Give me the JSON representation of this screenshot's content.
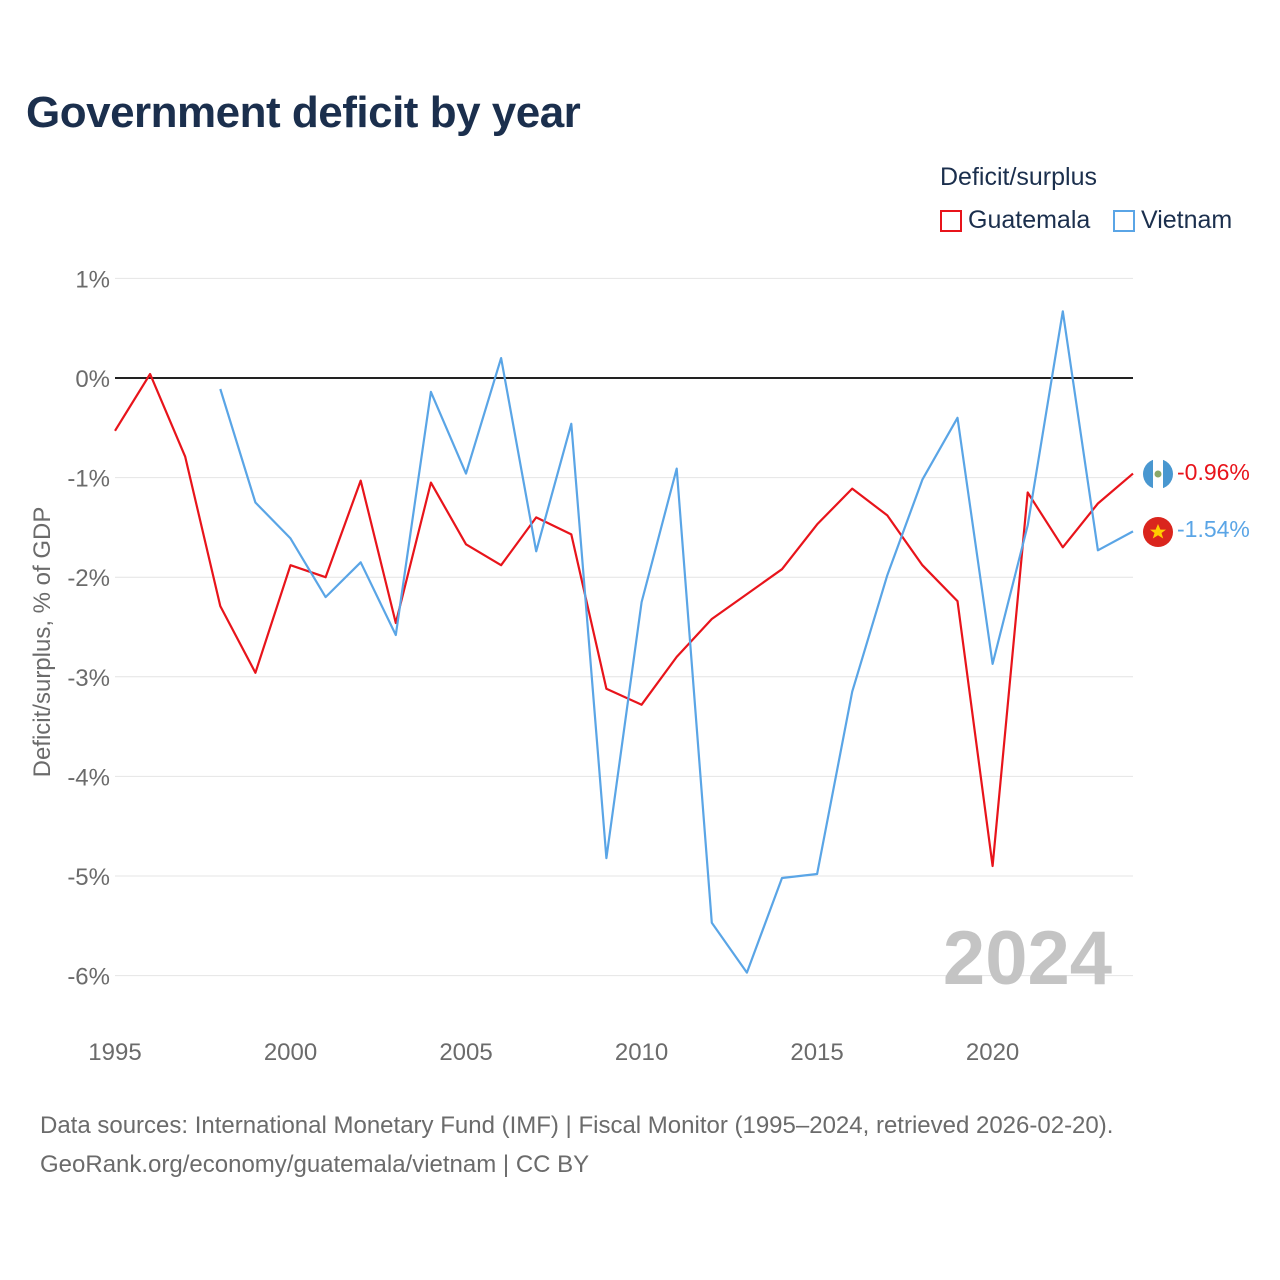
{
  "title": "Government deficit by year",
  "legend": {
    "title": "Deficit/surplus",
    "items": [
      {
        "label": "Guatemala",
        "color": "#e8141b"
      },
      {
        "label": "Vietnam",
        "color": "#5aa5e6"
      }
    ]
  },
  "footer": {
    "line1": "Data sources: International Monetary Fund (IMF) | Fiscal Monitor (1995–2024, retrieved 2026-02-20).",
    "line2": "GeoRank.org/economy/guatemala/vietnam | CC BY"
  },
  "watermark_year": "2024",
  "end_labels": {
    "guatemala": "-0.96%",
    "vietnam": "-1.54%"
  },
  "chart_data": {
    "type": "line",
    "title": "Government deficit by year",
    "xlabel": "",
    "ylabel": "Deficit/surplus, % of GDP",
    "xlim": [
      1995,
      2024
    ],
    "ylim": [
      -6.5,
      1
    ],
    "x_ticks": [
      1995,
      2000,
      2005,
      2010,
      2015,
      2020
    ],
    "x_tick_labels": [
      "1995",
      "2000",
      "2005",
      "2010",
      "2015",
      "2020"
    ],
    "y_ticks": [
      1,
      0,
      -1,
      -2,
      -3,
      -4,
      -5,
      -6
    ],
    "y_tick_labels": [
      "1%",
      "0%",
      "-1%",
      "-2%",
      "-3%",
      "-4%",
      "-5%",
      "-6%"
    ],
    "series": [
      {
        "name": "Guatemala",
        "color": "#e8141b",
        "x": [
          1995,
          1996,
          1997,
          1998,
          1999,
          2000,
          2001,
          2002,
          2003,
          2004,
          2005,
          2006,
          2007,
          2008,
          2009,
          2010,
          2011,
          2012,
          2013,
          2014,
          2015,
          2016,
          2017,
          2018,
          2019,
          2020,
          2021,
          2022,
          2023,
          2024
        ],
        "values": [
          -0.53,
          0.04,
          -0.79,
          -2.29,
          -2.96,
          -1.88,
          -2.0,
          -1.03,
          -2.46,
          -1.05,
          -1.67,
          -1.88,
          -1.4,
          -1.57,
          -3.12,
          -3.28,
          -2.8,
          -2.42,
          -2.17,
          -1.92,
          -1.47,
          -1.11,
          -1.38,
          -1.88,
          -2.24,
          -4.9,
          -1.15,
          -1.7,
          -1.26,
          -0.96
        ]
      },
      {
        "name": "Vietnam",
        "color": "#5aa5e6",
        "x": [
          1998,
          1999,
          2000,
          2001,
          2002,
          2003,
          2004,
          2005,
          2006,
          2007,
          2008,
          2009,
          2010,
          2011,
          2012,
          2013,
          2014,
          2015,
          2016,
          2017,
          2018,
          2019,
          2020,
          2021,
          2022,
          2023,
          2024
        ],
        "values": [
          -0.11,
          -1.25,
          -1.61,
          -2.2,
          -1.85,
          -2.58,
          -0.14,
          -0.96,
          0.2,
          -1.74,
          -0.46,
          -4.82,
          -2.25,
          -0.91,
          -5.47,
          -5.97,
          -5.02,
          -4.98,
          -3.15,
          -1.98,
          -1.02,
          -0.4,
          -2.87,
          -1.48,
          0.67,
          -1.73,
          -1.54
        ]
      }
    ],
    "zero_line": true,
    "grid": true,
    "legend_position": "top-right"
  }
}
